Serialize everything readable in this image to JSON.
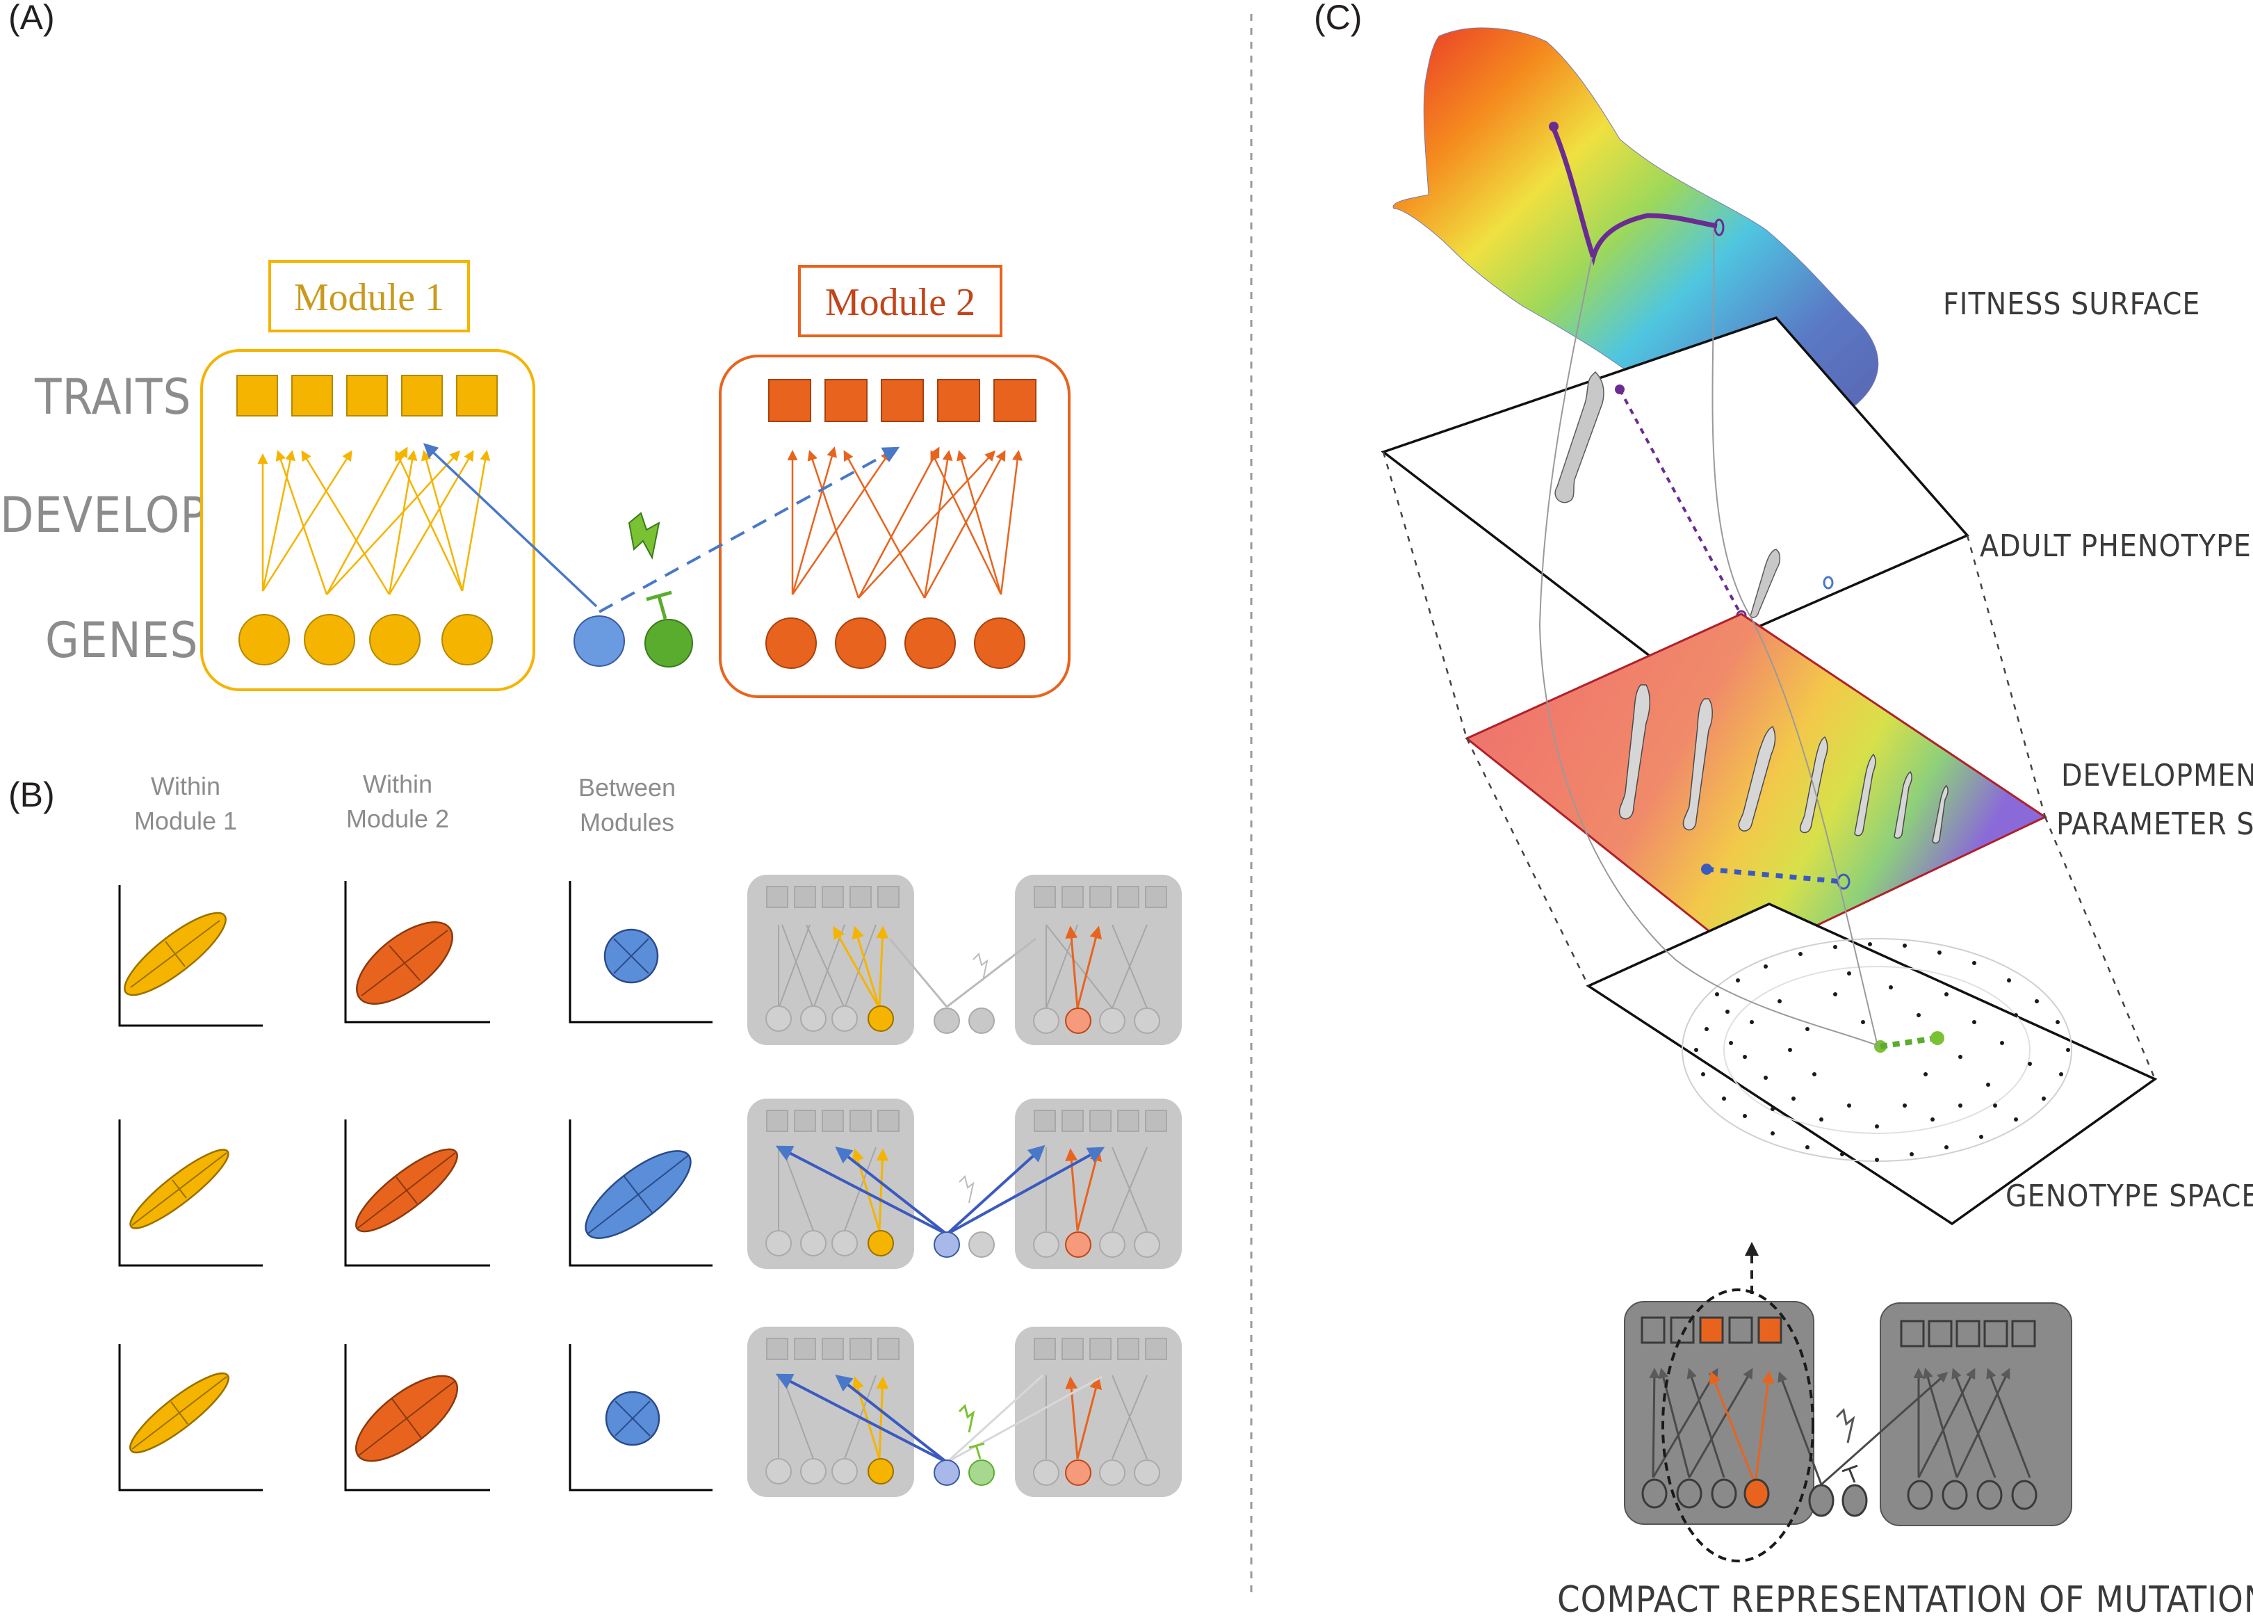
{
  "panels": {
    "a": "(A)",
    "b": "(B)",
    "c": "(C)"
  },
  "panel_a": {
    "module1_title": "Module 1",
    "module2_title": "Module 2",
    "row_labels": [
      "TRAITS",
      "DEVELOPMENT",
      "GENES"
    ]
  },
  "panel_b": {
    "columns": [
      [
        "Within",
        "Module 1"
      ],
      [
        "Within",
        "Module 2"
      ],
      [
        "Between",
        "Modules"
      ]
    ]
  },
  "panel_c": {
    "fitness_surface": "FITNESS SURFACE",
    "adult_phenotype": "ADULT PHENOTYPE",
    "developmental": [
      "DEVELOPMENTAL",
      "PARAMETER SPACE"
    ],
    "genotype_space": "GENOTYPE SPACE",
    "caption": "COMPACT REPRESENTATION OF MUTATIONAL EFFECTS"
  },
  "colors": {
    "module1": "#f5b400",
    "module1_title": "#c99a1c",
    "module2": "#e8641e",
    "module2_title": "#c0461a",
    "blue": "#4a78c8",
    "green": "#5aac2e",
    "purple": "#6a2c91",
    "grey_box": "#c8c8c8",
    "dark_box": "#8a8a8a"
  }
}
